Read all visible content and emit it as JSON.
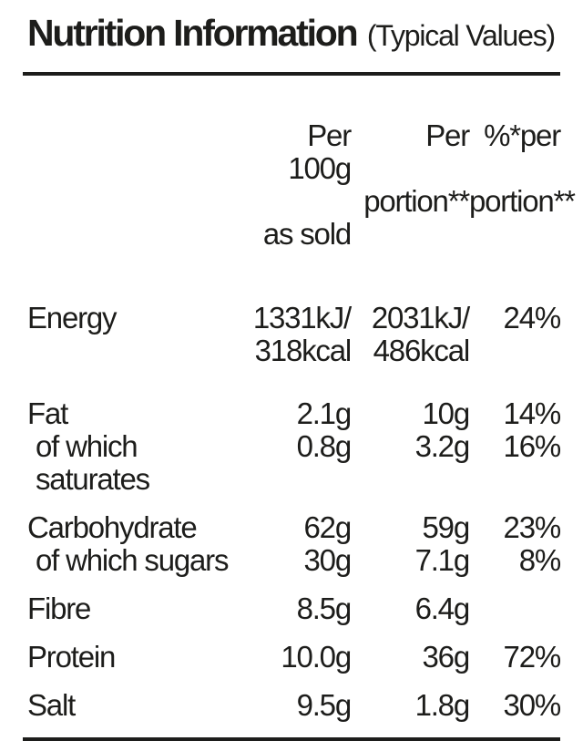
{
  "title": {
    "main": "Nutrition Information",
    "suffix": "(Typical Values)"
  },
  "header": {
    "col_per100": {
      "line1": "Per 100g",
      "line2": "as sold"
    },
    "col_portion": {
      "line1": "Per",
      "line2": "portion**"
    },
    "col_percent": {
      "line1": "%*per",
      "line2": "portion**"
    }
  },
  "rows": [
    {
      "label": "Energy",
      "indent": false,
      "group_start": false,
      "per100": "1331kJ/\n318kcal",
      "portion": "2031kJ/\n486kcal",
      "percent": "24%"
    },
    {
      "label": "Fat",
      "indent": false,
      "group_start": true,
      "extra_gap": true,
      "per100": "2.1g",
      "portion": "10g",
      "percent": "14%"
    },
    {
      "label": "of which saturates",
      "indent": true,
      "group_start": false,
      "per100": "0.8g",
      "portion": "3.2g",
      "percent": "16%"
    },
    {
      "label": "Carbohydrate",
      "indent": false,
      "group_start": true,
      "per100": "62g",
      "portion": "59g",
      "percent": "23%"
    },
    {
      "label": "of which sugars",
      "indent": true,
      "group_start": false,
      "per100": "30g",
      "portion": "7.1g",
      "percent": "8%"
    },
    {
      "label": "Fibre",
      "indent": false,
      "group_start": true,
      "per100": "8.5g",
      "portion": "6.4g",
      "percent": ""
    },
    {
      "label": "Protein",
      "indent": false,
      "group_start": true,
      "per100": "10.0g",
      "portion": "36g",
      "percent": "72%"
    },
    {
      "label": "Salt",
      "indent": false,
      "group_start": true,
      "per100": "9.5g",
      "portion": "1.8g",
      "percent": "30%"
    }
  ],
  "colors": {
    "text": "#1d1d1b",
    "background": "#ffffff",
    "rule": "#1d1d1b"
  }
}
